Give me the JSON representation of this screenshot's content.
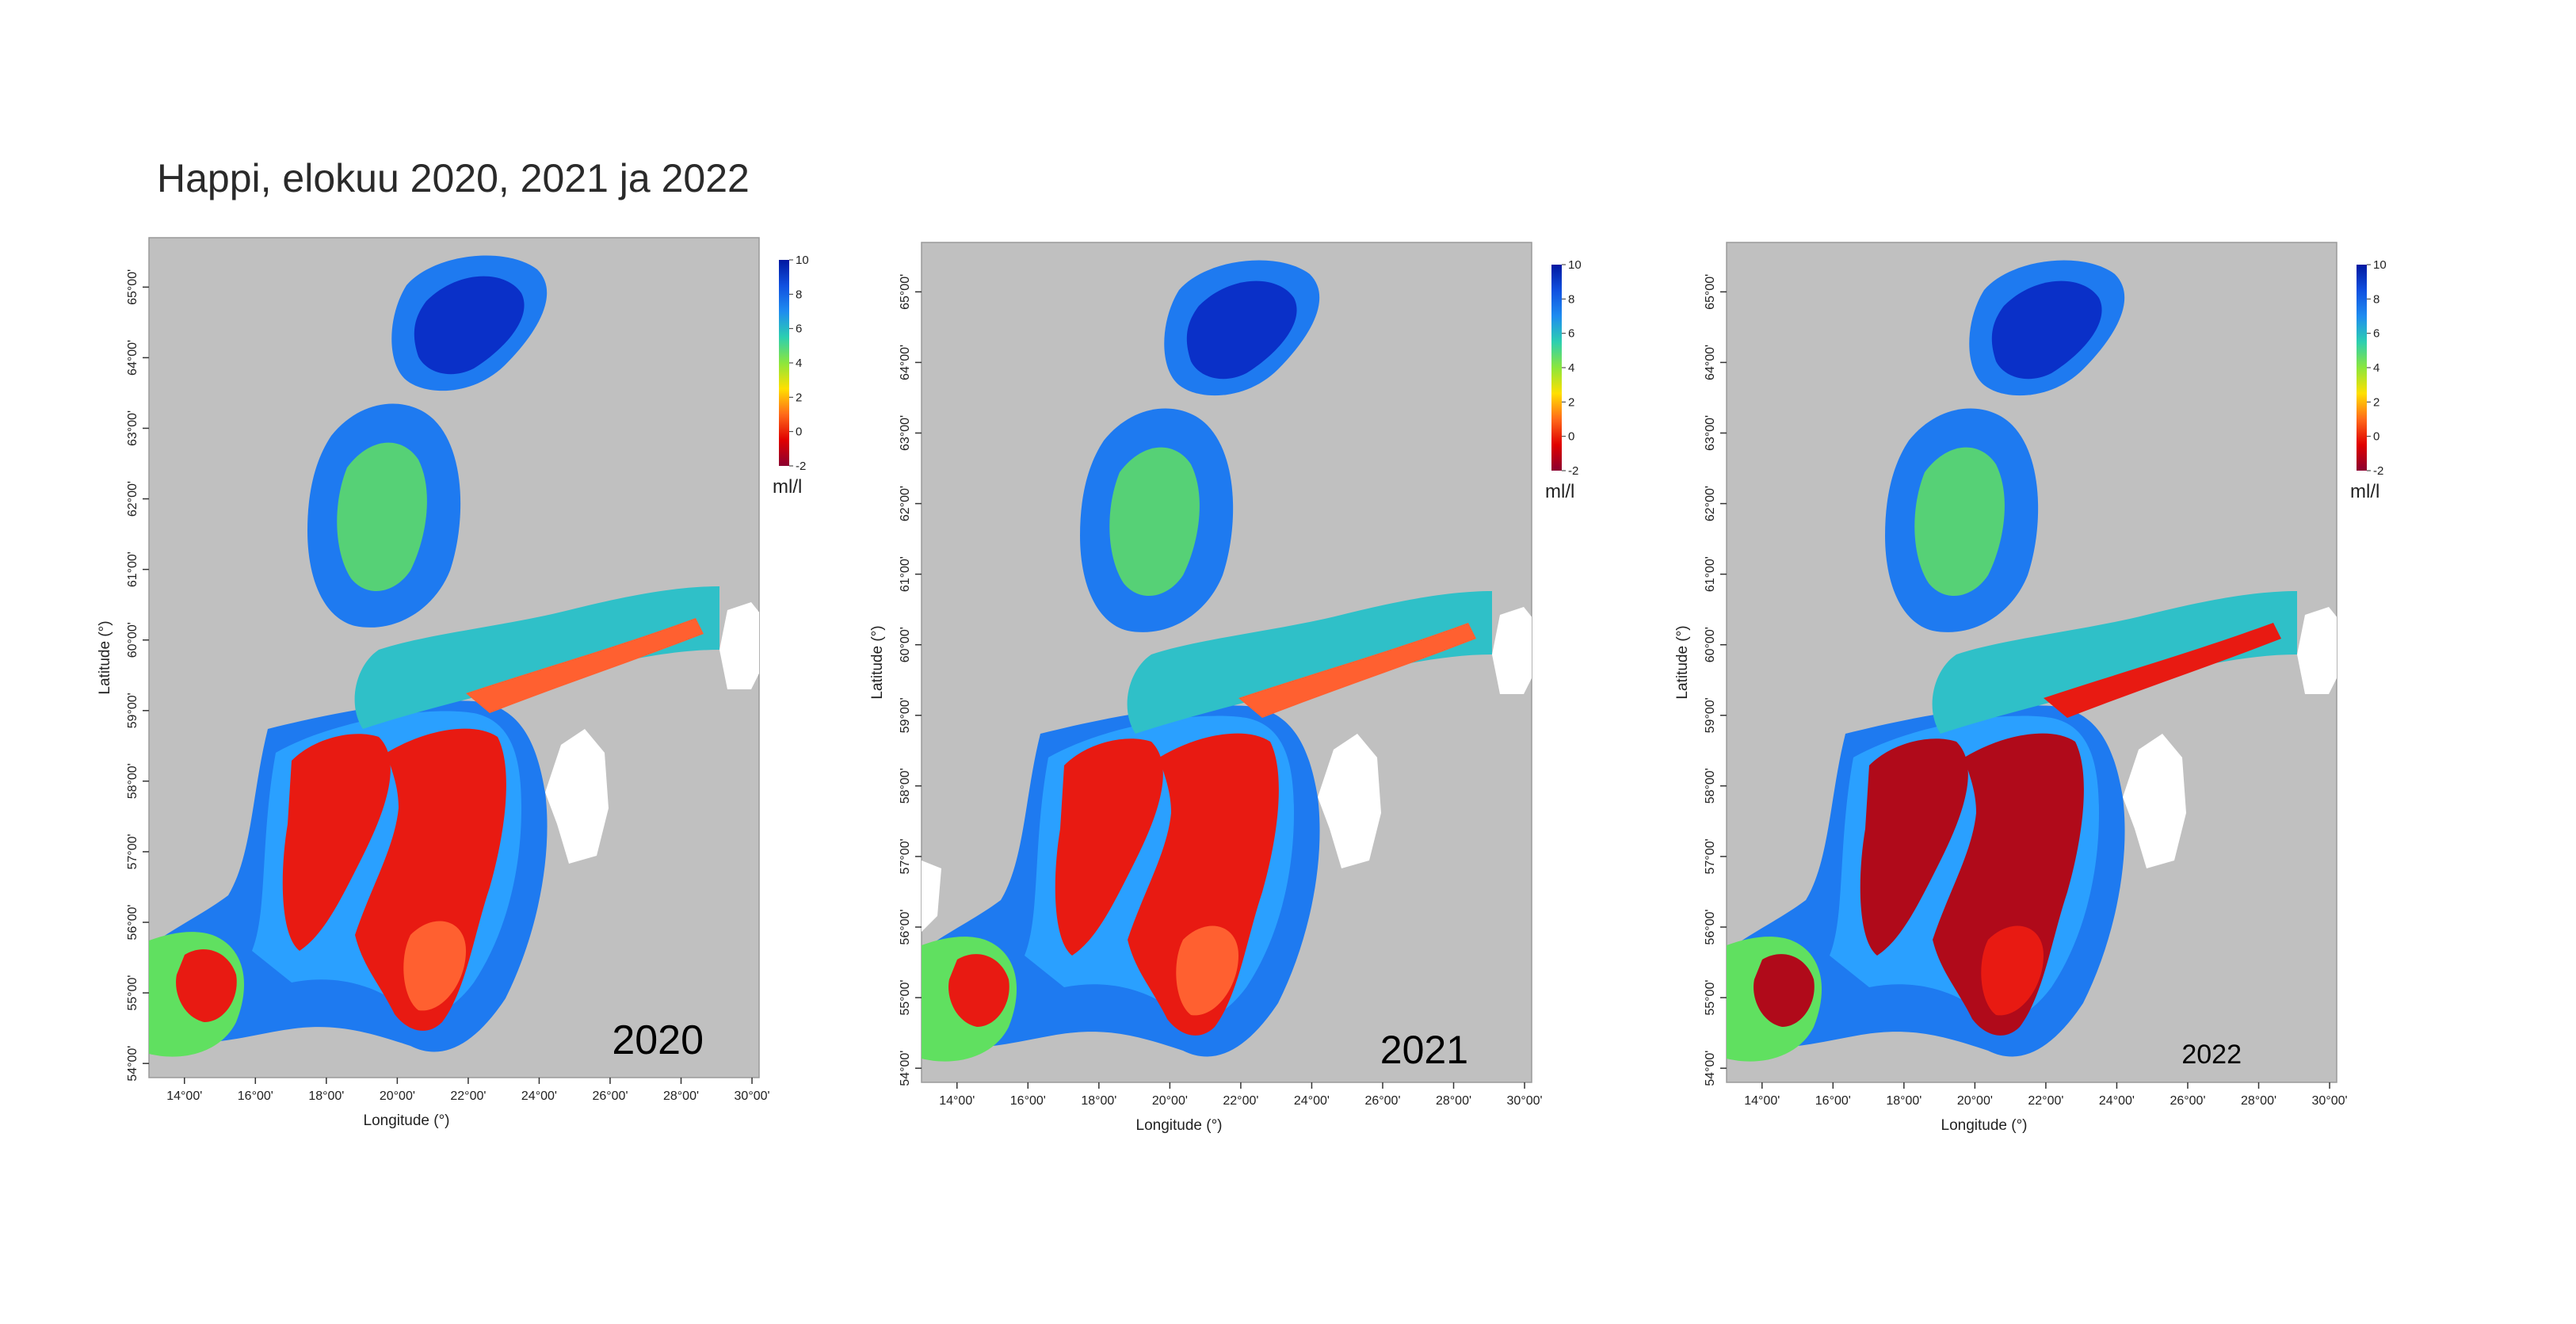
{
  "title": "Happi, elokuu 2020, 2021 ja 2022",
  "axes": {
    "xlabel": "Longitude (°)",
    "ylabel": "Latitude (°)",
    "xticks": [
      "14°00'",
      "16°00'",
      "18°00'",
      "20°00'",
      "22°00'",
      "24°00'",
      "26°00'",
      "28°00'",
      "30°00'"
    ],
    "yticks": [
      "54°00'",
      "55°00'",
      "56°00'",
      "57°00'",
      "58°00'",
      "59°00'",
      "60°00'",
      "61°00'",
      "62°00'",
      "63°00'",
      "64°00'",
      "65°00'"
    ]
  },
  "colorbar": {
    "unit": "ml/l",
    "ticks": [
      "10",
      "8",
      "6",
      "4",
      "2",
      "0",
      "-2"
    ],
    "range": [
      -2,
      10
    ],
    "colors": [
      "#8b0030",
      "#e00000",
      "#ff6a1a",
      "#ffe000",
      "#8ce63c",
      "#2ccfb0",
      "#1e8cf0",
      "#1050e0",
      "#0018a0"
    ]
  },
  "colors": {
    "land": "#c0c0c0",
    "no_data": "#ffffff",
    "deep_anoxic": "#e81a12",
    "dark_anoxic": "#b00a1a",
    "low_oxygen": "#ff6030",
    "medium": "#60e060",
    "high": "#1e7af0",
    "very_high": "#0a30c8"
  },
  "panels": [
    {
      "year": "2020"
    },
    {
      "year": "2021"
    },
    {
      "year": "2022"
    }
  ]
}
